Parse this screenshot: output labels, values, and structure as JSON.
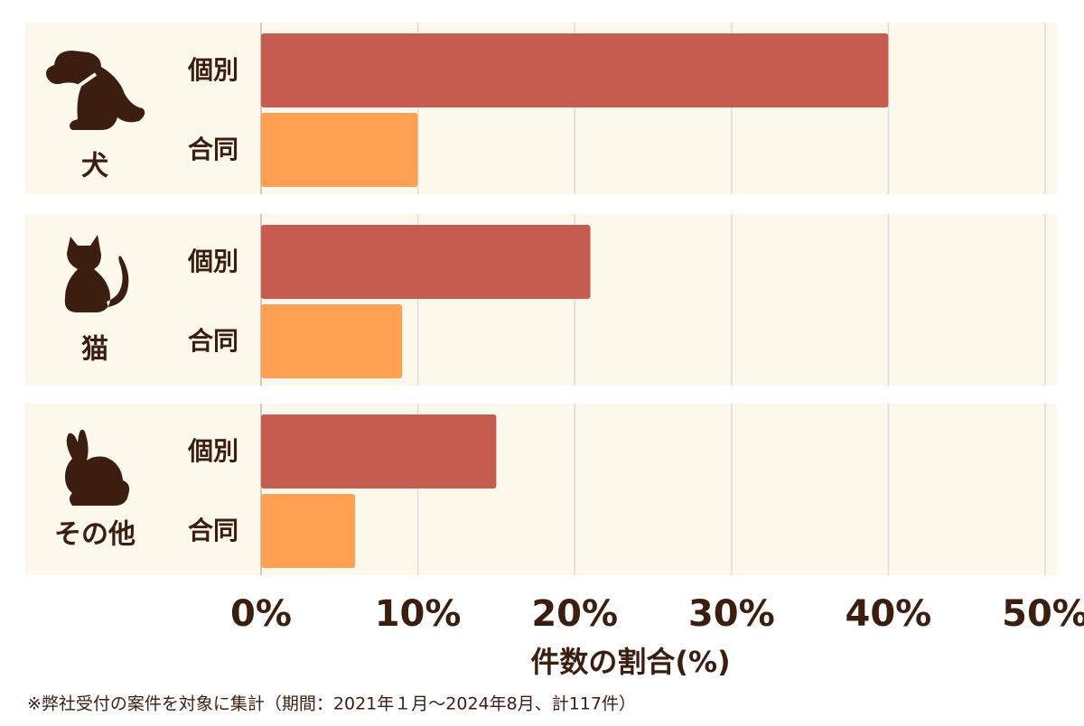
{
  "chart_data": {
    "type": "grouped-barh",
    "categories": [
      "犬",
      "猫",
      "その他"
    ],
    "series": [
      {
        "name": "個別",
        "color": "#c65c4f",
        "values": [
          40,
          21,
          15
        ]
      },
      {
        "name": "合同",
        "color": "#ffa052",
        "values": [
          10,
          9,
          6
        ]
      }
    ],
    "xlim": [
      0,
      50
    ],
    "xticks": [
      {
        "value": 0,
        "label": "0%"
      },
      {
        "value": 10,
        "label": "10%"
      },
      {
        "value": 20,
        "label": "20%"
      },
      {
        "value": 30,
        "label": "30%"
      },
      {
        "value": 40,
        "label": "40%"
      },
      {
        "value": 50,
        "label": "50%"
      }
    ],
    "xlabel": "件数の割合(%)",
    "note": "※弊社受付の案件を対象に集計（期間：2021年１月〜2024年8月、計117件）",
    "grid": true
  }
}
